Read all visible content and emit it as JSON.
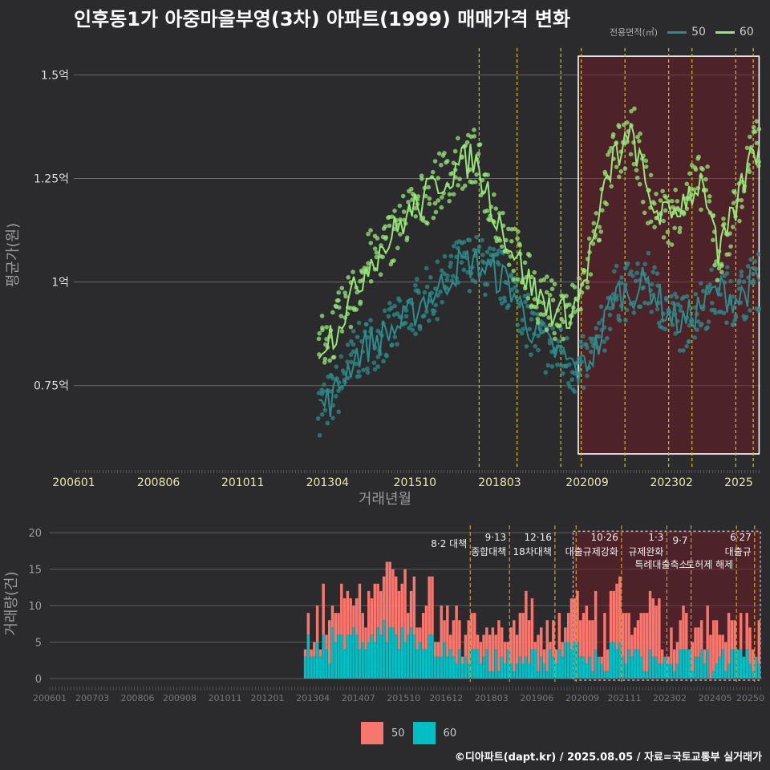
{
  "title": "인후동1가 아중마을부영(3차) 아파트(1999) 매매가격 변화",
  "footer": "©디아파트(dapt.kr) / 2025.08.05 / 자료=국토교통부 실거래가",
  "chart_data": [
    {
      "type": "line",
      "name": "price",
      "ylabel": "평균가(원)",
      "xlabel": "거래년월",
      "legend_title": "전용면적(㎡)",
      "legend_position": "top-right",
      "grid": true,
      "ylim": [
        0.55,
        1.58
      ],
      "y_ticks": [
        {
          "v": 0.75,
          "label": "0.75억"
        },
        {
          "v": 1.0,
          "label": "1억"
        },
        {
          "v": 1.25,
          "label": "1.25억"
        },
        {
          "v": 1.5,
          "label": "1.5억"
        }
      ],
      "x_tick_labels": [
        "200601",
        "200806",
        "201011",
        "201304",
        "201510",
        "201803",
        "202009",
        "202302",
        "2025"
      ],
      "series": [
        {
          "name": "50",
          "color": "#2e8b8b",
          "x": [
            "2013-01",
            "2013-06",
            "2014-01",
            "2014-06",
            "2015-01",
            "2015-06",
            "2016-01",
            "2016-06",
            "2017-01",
            "2017-06",
            "2018-01",
            "2018-06",
            "2019-01",
            "2019-06",
            "2020-01",
            "2020-06",
            "2021-01",
            "2021-06",
            "2022-01",
            "2022-06",
            "2023-01",
            "2023-06",
            "2024-01",
            "2024-06",
            "2025-01",
            "2025-06"
          ],
          "y": [
            0.7,
            0.72,
            0.82,
            0.85,
            0.88,
            0.9,
            0.96,
            0.98,
            1.04,
            1.05,
            1.02,
            1.0,
            0.9,
            0.85,
            0.82,
            0.78,
            0.85,
            0.97,
            0.98,
            1.0,
            0.92,
            0.9,
            0.95,
            0.98,
            0.96,
            1.0
          ]
        },
        {
          "name": "60",
          "color": "#98e57a",
          "x": [
            "2013-01",
            "2013-06",
            "2014-01",
            "2014-06",
            "2015-01",
            "2015-06",
            "2016-01",
            "2016-06",
            "2017-01",
            "2017-06",
            "2018-01",
            "2018-06",
            "2019-01",
            "2019-06",
            "2020-01",
            "2020-06",
            "2021-01",
            "2021-06",
            "2022-01",
            "2022-06",
            "2023-01",
            "2023-06",
            "2024-01",
            "2024-06",
            "2025-01",
            "2025-06"
          ],
          "y": [
            0.85,
            0.88,
            0.97,
            1.05,
            1.1,
            1.15,
            1.2,
            1.24,
            1.28,
            1.3,
            1.18,
            1.1,
            1.0,
            0.95,
            0.92,
            0.95,
            1.15,
            1.3,
            1.35,
            1.2,
            1.15,
            1.2,
            1.25,
            1.05,
            1.2,
            1.32
          ]
        }
      ],
      "policy_dates": [
        "2017-08",
        "2018-09",
        "2019-12",
        "2020-07",
        "2021-10",
        "2023-01",
        "2023-09",
        "2024-12",
        "2025-06"
      ],
      "highlight_range": [
        "2020-06",
        "2025-08"
      ]
    },
    {
      "type": "bar",
      "name": "volume",
      "ylabel": "거래량(건)",
      "ylim": [
        0,
        21
      ],
      "y_ticks": [
        0,
        5,
        10,
        15,
        20
      ],
      "x_tick_labels": [
        "200601",
        "200703",
        "200806",
        "200908",
        "201011",
        "201201",
        "201304",
        "201407",
        "201510",
        "201612",
        "201803",
        "201906",
        "202009",
        "202111",
        "202302",
        "202405",
        "20250"
      ],
      "series_names": [
        "50",
        "60"
      ],
      "series_colors": [
        "#f8766d",
        "#00bfc4"
      ],
      "counts_50_avg": [
        3,
        5,
        6,
        7,
        5,
        3,
        4,
        3,
        4,
        3,
        4,
        3,
        5,
        4,
        3,
        2,
        3,
        2
      ],
      "counts_60_avg": [
        4,
        5,
        5,
        6,
        5,
        3,
        3,
        2,
        3,
        2,
        3,
        2,
        3,
        2,
        2,
        2,
        2,
        2
      ],
      "annotations": [
        {
          "date": "2017-08",
          "line1": "",
          "line2": "8·2 대책"
        },
        {
          "date": "2018-09",
          "line1": "9·13",
          "line2": "종합대책"
        },
        {
          "date": "2019-12",
          "line1": "12·16",
          "line2": "18차대책"
        },
        {
          "date": "2021-10",
          "line1": "10·26",
          "line2": "대출규제강화"
        },
        {
          "date": "2023-01",
          "line1": "1·3",
          "line2": "규제완화"
        },
        {
          "date": "2023-09",
          "line1": "",
          "line2": "9·7"
        },
        {
          "date": "2023-09",
          "line1": "",
          "line2": "특례대출축소"
        },
        {
          "date": "2024-12",
          "line1": "",
          "line2": "토허제 해제"
        },
        {
          "date": "2025-06",
          "line1": "6·27",
          "line2": "대출규"
        }
      ],
      "highlight_range": [
        "2020-06",
        "2025-08"
      ]
    }
  ]
}
